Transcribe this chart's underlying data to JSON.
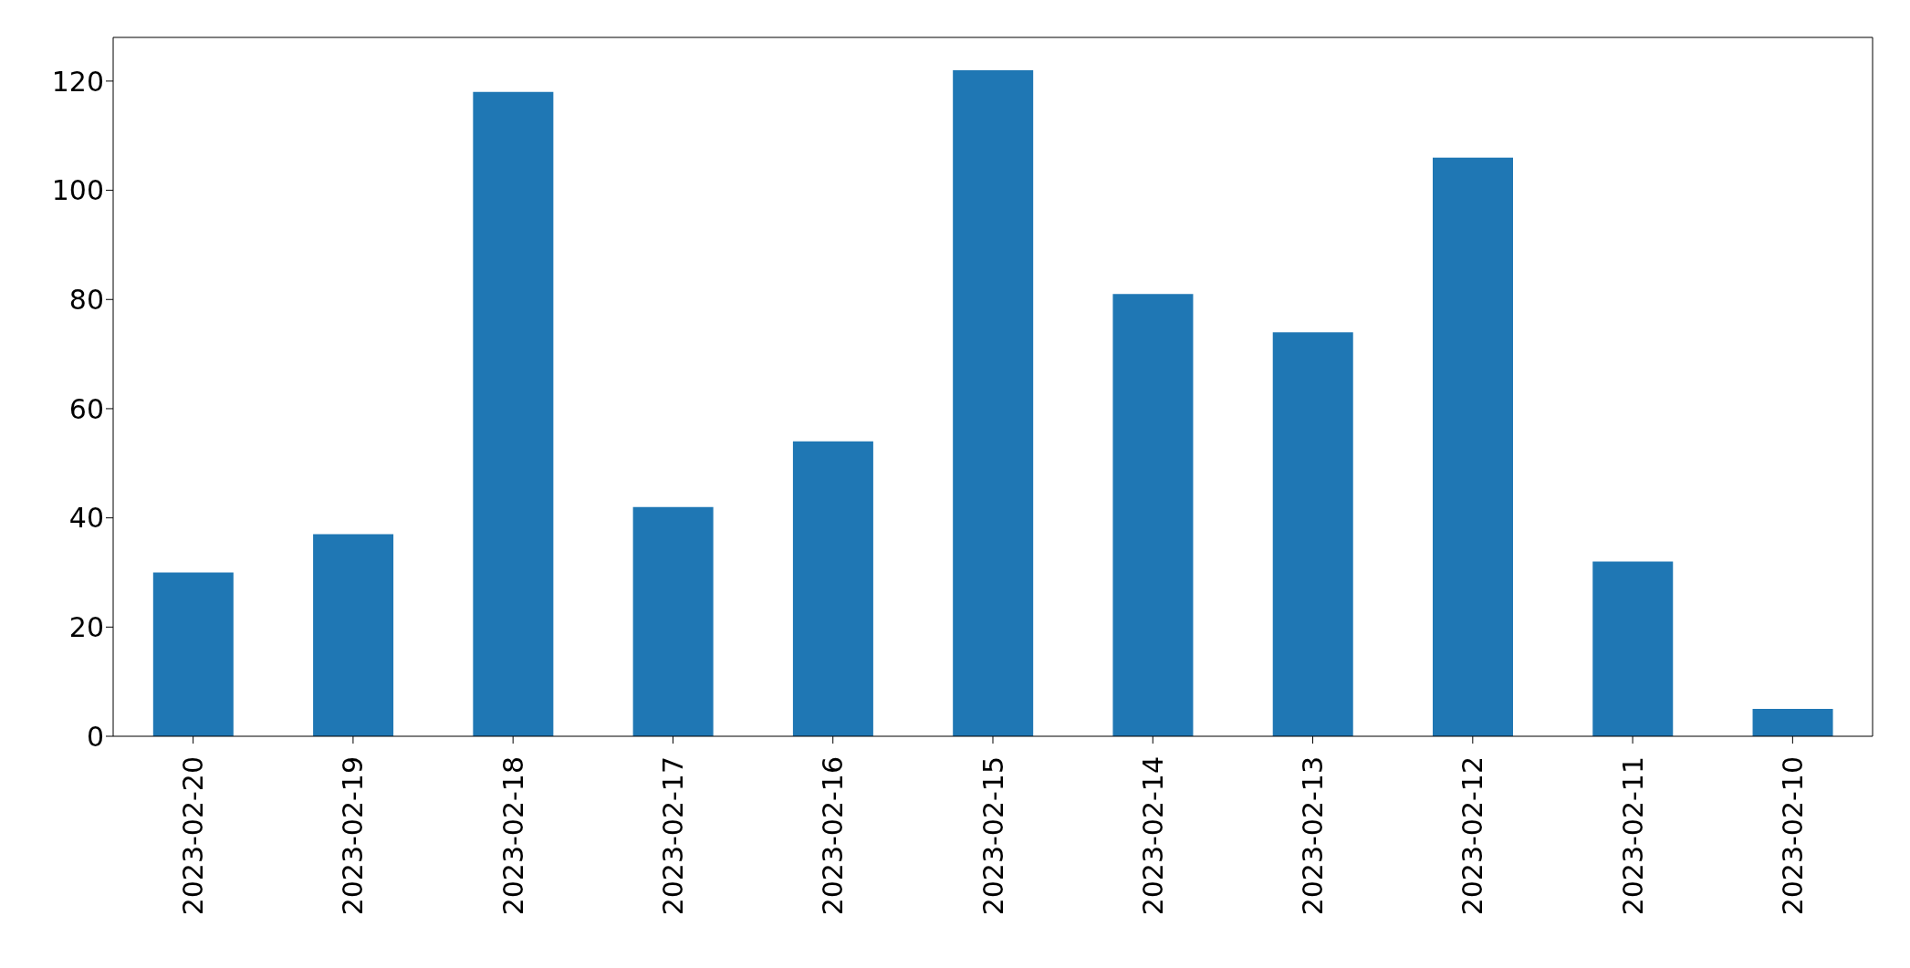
{
  "chart_data": {
    "type": "bar",
    "categories": [
      "2023-02-20",
      "2023-02-19",
      "2023-02-18",
      "2023-02-17",
      "2023-02-16",
      "2023-02-15",
      "2023-02-14",
      "2023-02-13",
      "2023-02-12",
      "2023-02-11",
      "2023-02-10"
    ],
    "values": [
      30,
      37,
      118,
      42,
      54,
      122,
      81,
      74,
      106,
      32,
      5
    ],
    "color": "#1f77b4",
    "ylim": [
      0,
      128
    ],
    "yticks": [
      0,
      20,
      40,
      60,
      80,
      100,
      120
    ],
    "grid": false,
    "legend": false
  }
}
